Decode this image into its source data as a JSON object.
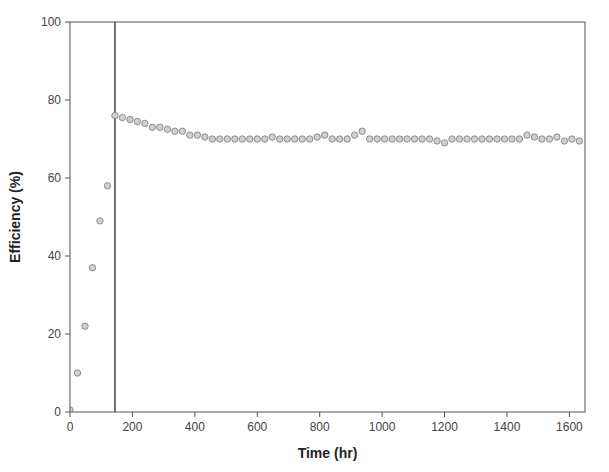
{
  "chart_data": {
    "type": "scatter",
    "x": [
      0,
      24,
      48,
      72,
      96,
      120,
      144,
      168,
      192,
      216,
      240,
      264,
      288,
      312,
      336,
      360,
      384,
      408,
      432,
      456,
      480,
      504,
      528,
      552,
      576,
      600,
      624,
      648,
      672,
      696,
      720,
      744,
      768,
      792,
      816,
      840,
      864,
      888,
      912,
      936,
      960,
      984,
      1008,
      1032,
      1056,
      1080,
      1104,
      1128,
      1152,
      1176,
      1200,
      1224,
      1248,
      1272,
      1296,
      1320,
      1344,
      1368,
      1392,
      1416,
      1440,
      1464,
      1488,
      1512,
      1536,
      1560,
      1584,
      1608,
      1632
    ],
    "values": [
      0.5,
      10,
      22,
      37,
      49,
      58,
      76,
      75.5,
      75,
      74.5,
      74,
      73,
      73,
      72.5,
      72,
      72,
      71,
      71,
      70.5,
      70,
      70,
      70,
      70,
      70,
      70,
      70,
      70,
      70.5,
      70,
      70,
      70,
      70,
      70,
      70.5,
      71,
      70,
      70,
      70,
      71,
      72,
      70,
      70,
      70,
      70,
      70,
      70,
      70,
      70,
      70,
      69.5,
      69,
      70,
      70,
      70,
      70,
      70,
      70,
      70,
      70,
      70,
      70,
      71,
      70.5,
      70,
      70,
      70.5,
      69.5,
      70,
      69.5
    ],
    "vline_x": 144,
    "color": "#d0d0d0",
    "xlabel": "Time (hr)",
    "ylabel": "Efficiency (%)",
    "xlim": [
      0,
      1650
    ],
    "ylim": [
      0,
      100
    ],
    "xticks": [
      0,
      200,
      400,
      600,
      800,
      1000,
      1200,
      1400,
      1600
    ],
    "yticks": [
      0,
      20,
      40,
      60,
      80,
      100
    ],
    "grid": false
  }
}
